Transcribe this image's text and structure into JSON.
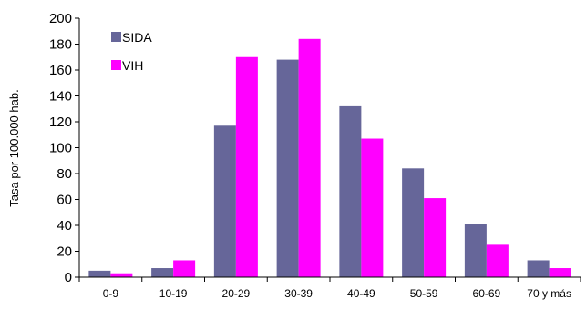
{
  "chart_data": {
    "type": "bar",
    "categories": [
      "0-9",
      "10-19",
      "20-29",
      "30-39",
      "40-49",
      "50-59",
      "60-69",
      "70 y más"
    ],
    "series": [
      {
        "name": "SIDA",
        "color": "#666699",
        "values": [
          5,
          7,
          117,
          168,
          132,
          84,
          41,
          13
        ]
      },
      {
        "name": "VIH",
        "color": "#ff00ff",
        "values": [
          3,
          13,
          170,
          184,
          107,
          61,
          25,
          7
        ]
      }
    ],
    "ylabel": "Tasa por 100.000 hab.",
    "ylim": [
      0,
      200
    ],
    "yticks": [
      0,
      20,
      40,
      60,
      80,
      100,
      120,
      140,
      160,
      180,
      200
    ],
    "grid": false,
    "legend_position": "top-left"
  }
}
